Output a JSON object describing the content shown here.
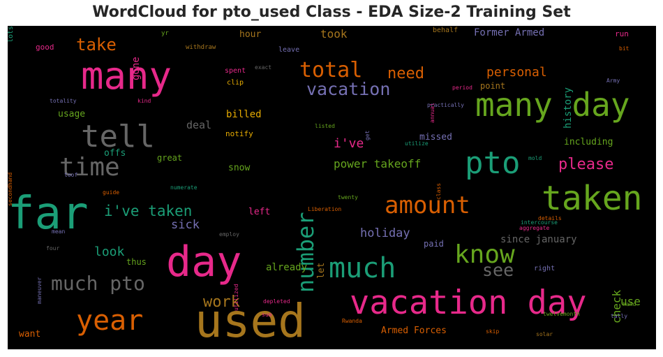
{
  "chart_data": {
    "type": "wordcloud",
    "title": "WordCloud for pto_used Class - EDA Size-2 Training Set",
    "background": "#000000",
    "palette": {
      "pink": "#e7298a",
      "green": "#66a61e",
      "teal": "#1b9e77",
      "orange": "#d95f02",
      "purple": "#7570b3",
      "gray": "#666666",
      "gold": "#a6761d",
      "yellow": "#e6ab02"
    },
    "words": [
      {
        "text": "many",
        "color": "#e7298a"
      },
      {
        "text": "vacation day",
        "color": "#e7298a"
      },
      {
        "text": "used",
        "color": "#a6761d"
      },
      {
        "text": "far",
        "color": "#1b9e77"
      },
      {
        "text": "many day",
        "color": "#66a61e"
      },
      {
        "text": "taken",
        "color": "#66a61e"
      },
      {
        "text": "day",
        "color": "#e7298a"
      },
      {
        "text": "pto",
        "color": "#1b9e77"
      },
      {
        "text": "much",
        "color": "#1b9e77"
      },
      {
        "text": "tell",
        "color": "#666666"
      },
      {
        "text": "time",
        "color": "#666666"
      },
      {
        "text": "year",
        "color": "#d95f02"
      },
      {
        "text": "amount",
        "color": "#d95f02"
      },
      {
        "text": "total",
        "color": "#d95f02"
      },
      {
        "text": "vacation",
        "color": "#7570b3"
      },
      {
        "text": "know",
        "color": "#66a61e"
      },
      {
        "text": "much pto",
        "color": "#666666"
      },
      {
        "text": "number",
        "color": "#1b9e77",
        "vertical": true
      },
      {
        "text": "i've taken",
        "color": "#1b9e77"
      },
      {
        "text": "take",
        "color": "#d95f02"
      },
      {
        "text": "work",
        "color": "#a6761d"
      },
      {
        "text": "please",
        "color": "#e7298a"
      },
      {
        "text": "need",
        "color": "#d95f02"
      },
      {
        "text": "personal",
        "color": "#d95f02"
      },
      {
        "text": "see",
        "color": "#666666"
      },
      {
        "text": "look",
        "color": "#1b9e77"
      },
      {
        "text": "sick",
        "color": "#7570b3"
      },
      {
        "text": "i've",
        "color": "#e7298a"
      },
      {
        "text": "power takeoff",
        "color": "#66a61e"
      },
      {
        "text": "holiday",
        "color": "#7570b3"
      },
      {
        "text": "check",
        "color": "#66a61e",
        "vertical": true
      },
      {
        "text": "use",
        "color": "#66a61e"
      },
      {
        "text": "took",
        "color": "#a6761d"
      },
      {
        "text": "Former Armed",
        "color": "#7570b3"
      },
      {
        "text": "since january",
        "color": "#666666"
      },
      {
        "text": "billed",
        "color": "#e6ab02"
      },
      {
        "text": "deal",
        "color": "#666666"
      },
      {
        "text": "gone",
        "color": "#e7298a",
        "vertical": true
      },
      {
        "text": "history",
        "color": "#1b9e77",
        "vertical": true
      },
      {
        "text": "including",
        "color": "#66a61e"
      },
      {
        "text": "missed",
        "color": "#7570b3"
      },
      {
        "text": "already",
        "color": "#66a61e"
      },
      {
        "text": "left",
        "color": "#e7298a"
      },
      {
        "text": "hour",
        "color": "#a6761d"
      },
      {
        "text": "want",
        "color": "#d95f02"
      },
      {
        "text": "Armed Forces",
        "color": "#d95f02"
      },
      {
        "text": "snow",
        "color": "#66a61e"
      },
      {
        "text": "let",
        "color": "#a6761d",
        "vertical": true
      },
      {
        "text": "usage",
        "color": "#66a61e"
      },
      {
        "text": "offs",
        "color": "#1b9e77"
      },
      {
        "text": "thus",
        "color": "#66a61e"
      },
      {
        "text": "great",
        "color": "#66a61e"
      },
      {
        "text": "notify",
        "color": "#e6ab02"
      },
      {
        "text": "point",
        "color": "#a6761d"
      },
      {
        "text": "paid",
        "color": "#7570b3"
      },
      {
        "text": "right",
        "color": "#7570b3"
      },
      {
        "text": "run",
        "color": "#e7298a"
      },
      {
        "text": "behalf",
        "color": "#a6761d"
      },
      {
        "text": "good",
        "color": "#e7298a"
      },
      {
        "text": "leave",
        "color": "#7570b3"
      },
      {
        "text": "spent",
        "color": "#e7298a"
      },
      {
        "text": "clip",
        "color": "#e6ab02"
      },
      {
        "text": "withdraw",
        "color": "#a6761d"
      },
      {
        "text": "yr",
        "color": "#66a61e"
      },
      {
        "text": "exact",
        "color": "#666666"
      },
      {
        "text": "bit",
        "color": "#d95f02"
      },
      {
        "text": "period",
        "color": "#e7298a"
      },
      {
        "text": "Army",
        "color": "#7570b3"
      },
      {
        "text": "totality",
        "color": "#7570b3"
      },
      {
        "text": "kind",
        "color": "#e7298a"
      },
      {
        "text": "annual",
        "color": "#e7298a",
        "vertical": true
      },
      {
        "text": "practically",
        "color": "#7570b3"
      },
      {
        "text": "listed",
        "color": "#66a61e"
      },
      {
        "text": "get",
        "color": "#7570b3",
        "vertical": true
      },
      {
        "text": "utilize",
        "color": "#1b9e77"
      },
      {
        "text": "mold",
        "color": "#1b9e77"
      },
      {
        "text": "secondhand",
        "color": "#d95f02",
        "vertical": true
      },
      {
        "text": "toof",
        "color": "#7570b3"
      },
      {
        "text": "guide",
        "color": "#d95f02"
      },
      {
        "text": "numerate",
        "color": "#1b9e77"
      },
      {
        "text": "class",
        "color": "#d95f02",
        "vertical": true
      },
      {
        "text": "twenty",
        "color": "#66a61e"
      },
      {
        "text": "Liberation",
        "color": "#d95f02"
      },
      {
        "text": "details",
        "color": "#d95f02"
      },
      {
        "text": "mean",
        "color": "#7570b3"
      },
      {
        "text": "employ",
        "color": "#666666"
      },
      {
        "text": "intercourse",
        "color": "#1b9e77"
      },
      {
        "text": "aggregate",
        "color": "#e7298a"
      },
      {
        "text": "four",
        "color": "#666666"
      },
      {
        "text": "maneuver",
        "color": "#7570b3",
        "vertical": true
      },
      {
        "text": "utilized",
        "color": "#e7298a",
        "vertical": true
      },
      {
        "text": "sum",
        "color": "#e7298a"
      },
      {
        "text": "depleted",
        "color": "#e7298a"
      },
      {
        "text": "Rwanda",
        "color": "#d95f02"
      },
      {
        "text": "skip",
        "color": "#d95f02"
      },
      {
        "text": "twelvemonth",
        "color": "#66a61e"
      },
      {
        "text": "solar",
        "color": "#a6761d"
      },
      {
        "text": "tally",
        "color": "#7570b3"
      },
      {
        "text": "hand",
        "color": "#66a61e"
      },
      {
        "text": "lots",
        "color": "#1b9e77",
        "vertical": true
      }
    ]
  }
}
